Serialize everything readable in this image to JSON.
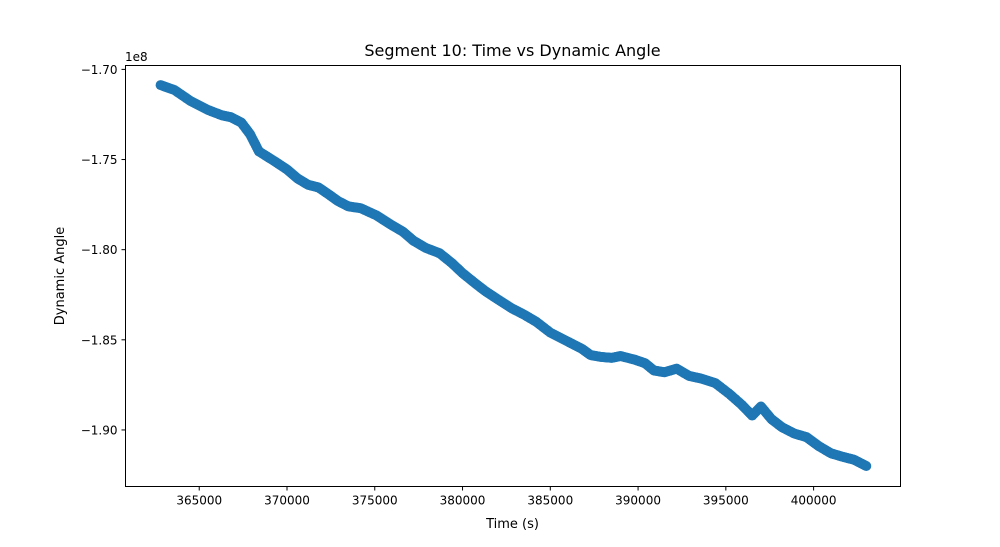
{
  "chart_data": {
    "type": "scatter",
    "title": "Segment 10: Time vs Dynamic Angle",
    "xlabel": "Time (s)",
    "ylabel": "Dynamic Angle",
    "y_offset_label": "1e8",
    "xlim": [
      360800,
      404950
    ],
    "ylim": [
      -1.93137,
      -1.69784
    ],
    "x_ticks": [
      365000,
      370000,
      375000,
      380000,
      385000,
      390000,
      395000,
      400000
    ],
    "x_tick_labels": [
      "365000",
      "370000",
      "375000",
      "380000",
      "385000",
      "390000",
      "395000",
      "400000"
    ],
    "y_ticks": [
      -1.7,
      -1.75,
      -1.8,
      -1.85,
      -1.9
    ],
    "y_tick_labels": [
      "−1.70",
      "−1.75",
      "−1.80",
      "−1.85",
      "−1.90"
    ],
    "grid": false,
    "marker_color": "#1f77b4",
    "series": [
      {
        "x": [
          362800,
          363600,
          364500,
          365500,
          366300,
          366800,
          367400,
          367900,
          368400,
          369300,
          370000,
          370600,
          371200,
          371800,
          372400,
          372900,
          373500,
          374200,
          375100,
          375900,
          376600,
          377200,
          377900,
          378700,
          379400,
          380000,
          380700,
          381300,
          382000,
          382800,
          383500,
          384200,
          385000,
          386000,
          386800,
          387300,
          387900,
          388500,
          389000,
          389800,
          390400,
          390900,
          391500,
          392200,
          392900,
          393600,
          394400,
          395200,
          395900,
          396500,
          397000,
          397600,
          398200,
          398900,
          399600,
          400300,
          401000,
          401700,
          402300,
          403000
        ],
        "y": [
          -1.7087,
          -1.7115,
          -1.7175,
          -1.7225,
          -1.7255,
          -1.7265,
          -1.7295,
          -1.736,
          -1.7455,
          -1.751,
          -1.7555,
          -1.7605,
          -1.764,
          -1.7655,
          -1.7695,
          -1.773,
          -1.776,
          -1.777,
          -1.781,
          -1.786,
          -1.79,
          -1.795,
          -1.799,
          -1.802,
          -1.8075,
          -1.813,
          -1.8185,
          -1.823,
          -1.8275,
          -1.8325,
          -1.836,
          -1.84,
          -1.846,
          -1.851,
          -1.855,
          -1.8585,
          -1.8595,
          -1.86,
          -1.859,
          -1.861,
          -1.863,
          -1.867,
          -1.868,
          -1.866,
          -1.87,
          -1.8715,
          -1.874,
          -1.88,
          -1.886,
          -1.892,
          -1.887,
          -1.894,
          -1.8985,
          -1.902,
          -1.904,
          -1.909,
          -1.913,
          -1.915,
          -1.9165,
          -1.92
        ]
      }
    ]
  }
}
